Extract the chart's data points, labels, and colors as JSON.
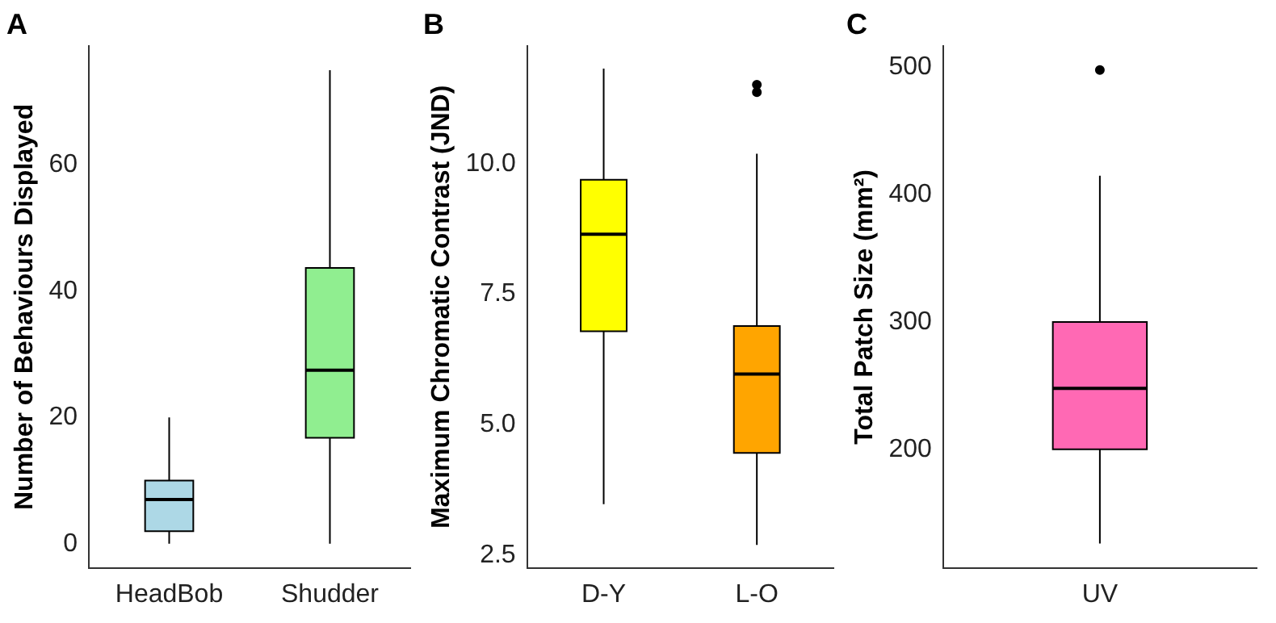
{
  "chart_data": [
    {
      "type": "box",
      "title": "A",
      "ylabel": "Number of Behaviours Displayed",
      "categories": [
        "HeadBob",
        "Shudder"
      ],
      "colors": [
        "#add8e6",
        "#90ee90"
      ],
      "boxes": [
        {
          "low": 0,
          "q1": 2,
          "median": 7,
          "q3": 10,
          "high": 20
        },
        {
          "low": 0,
          "q1": 16.8,
          "median": 27.5,
          "q3": 43.7,
          "high": 75
        }
      ],
      "ylim": [
        -3.8,
        78.8
      ],
      "yticks": [
        0,
        20,
        40,
        60
      ]
    },
    {
      "type": "box",
      "title": "B",
      "ylabel": "Maximum Chromatic Contrast (JND)",
      "categories": [
        "D-Y",
        "L-O"
      ],
      "colors": [
        "#ffff00",
        "#ffa500"
      ],
      "boxes": [
        {
          "low": 3.48,
          "q1": 6.79,
          "median": 8.65,
          "q3": 9.69,
          "high": 11.82
        },
        {
          "low": 2.7,
          "q1": 4.46,
          "median": 5.97,
          "q3": 6.89,
          "high": 10.19,
          "outliers": [
            11.51,
            11.37
          ]
        }
      ],
      "ylim": [
        2.26,
        12.25
      ],
      "yticks": [
        {
          "value": 2.5,
          "label": "2.5"
        },
        {
          "value": 5,
          "label": "5.0"
        },
        {
          "value": 7.5,
          "label": "7.5"
        },
        {
          "value": 10,
          "label": "10.0"
        }
      ]
    },
    {
      "type": "box",
      "title": "C",
      "ylabel": "Total Patch Size (mm²)",
      "categories": [
        "UV"
      ],
      "colors": [
        "#ff69b4"
      ],
      "boxes": [
        {
          "low": 126,
          "q1": 200,
          "median": 248,
          "q3": 300,
          "high": 415,
          "outliers": [
            498
          ]
        }
      ],
      "ylim": [
        107,
        516.7
      ],
      "yticks": [
        200,
        300,
        400,
        500
      ]
    }
  ]
}
